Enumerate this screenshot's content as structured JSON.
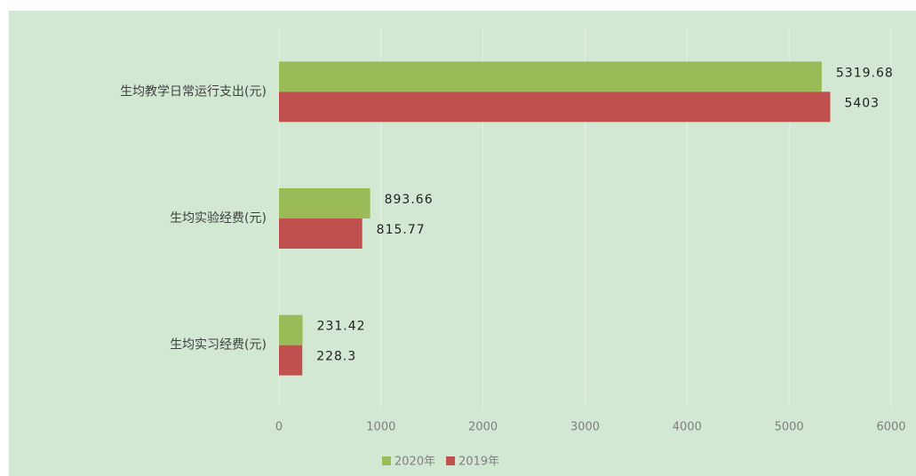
{
  "chart_data": {
    "type": "barh",
    "categories": [
      "生均教学日常运行支出(元)",
      "生均实验经费(元)",
      "生均实习经费(元)"
    ],
    "series": [
      {
        "name": "2020年",
        "color": "#9bbb59",
        "values": [
          5319.68,
          893.66,
          231.42
        ]
      },
      {
        "name": "2019年",
        "color": "#c0504d",
        "values": [
          5403,
          815.77,
          228.3
        ]
      }
    ],
    "xlim": [
      0,
      6000
    ],
    "xticks": [
      0,
      1000,
      2000,
      3000,
      4000,
      5000,
      6000
    ],
    "grid": true,
    "legend": "bottom"
  }
}
